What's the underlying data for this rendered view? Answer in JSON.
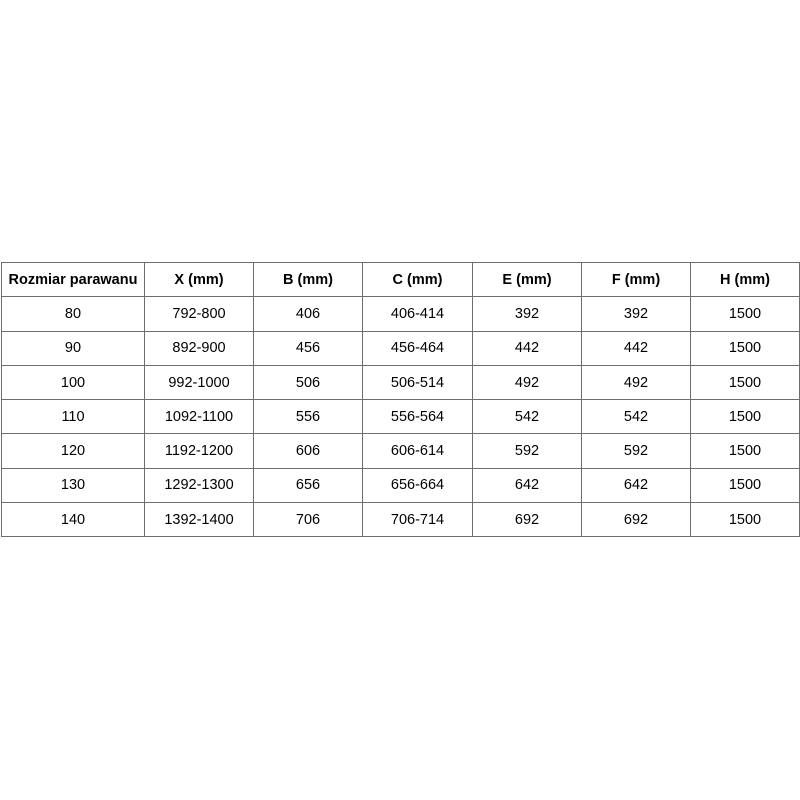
{
  "table": {
    "headers": [
      "Rozmiar parawanu",
      "X (mm)",
      "B (mm)",
      "C (mm)",
      "E (mm)",
      "F (mm)",
      "H (mm)"
    ],
    "rows": [
      [
        "80",
        "792-800",
        "406",
        "406-414",
        "392",
        "392",
        "1500"
      ],
      [
        "90",
        "892-900",
        "456",
        "456-464",
        "442",
        "442",
        "1500"
      ],
      [
        "100",
        "992-1000",
        "506",
        "506-514",
        "492",
        "492",
        "1500"
      ],
      [
        "110",
        "1092-1100",
        "556",
        "556-564",
        "542",
        "542",
        "1500"
      ],
      [
        "120",
        "1192-1200",
        "606",
        "606-614",
        "592",
        "592",
        "1500"
      ],
      [
        "130",
        "1292-1300",
        "656",
        "656-664",
        "642",
        "642",
        "1500"
      ],
      [
        "140",
        "1392-1400",
        "706",
        "706-714",
        "692",
        "692",
        "1500"
      ]
    ]
  }
}
